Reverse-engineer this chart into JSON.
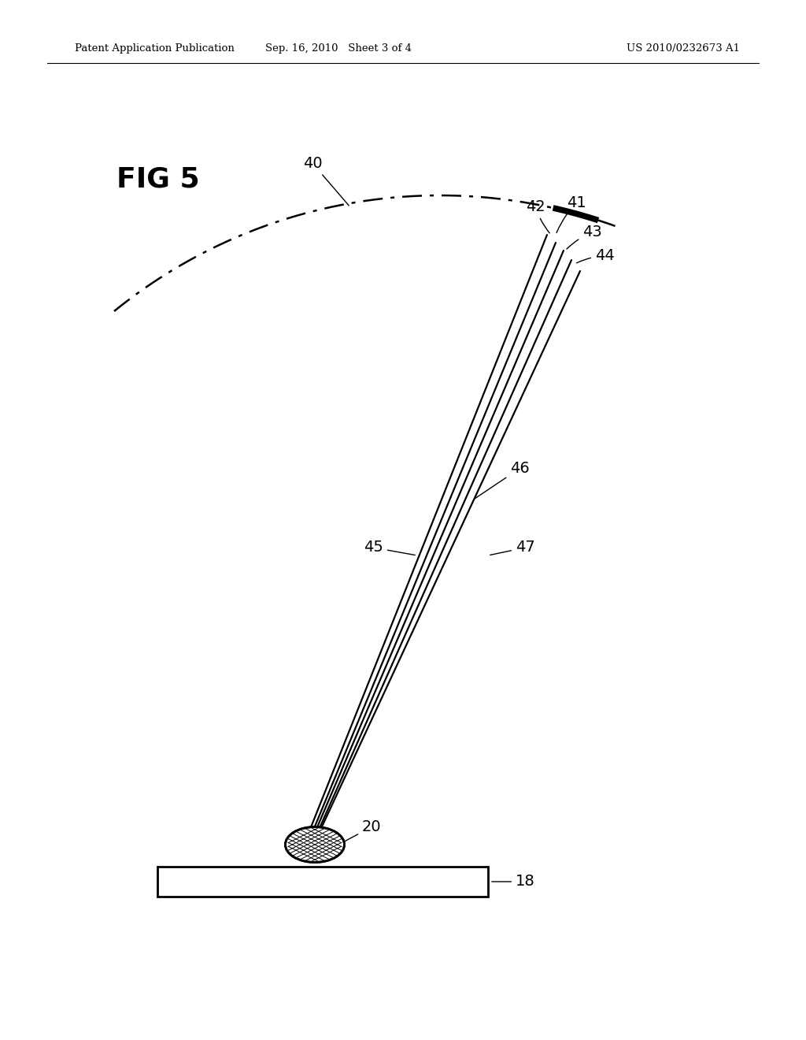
{
  "header_left": "Patent Application Publication",
  "header_mid": "Sep. 16, 2010   Sheet 3 of 4",
  "header_right": "US 2010/0232673 A1",
  "fig_label": "FIG 5",
  "bg_color": "#ffffff",
  "line_color": "#000000",
  "label_40": "40",
  "label_41": "41",
  "label_42": "42",
  "label_43": "43",
  "label_44": "44",
  "label_45": "45",
  "label_46": "46",
  "label_47": "47",
  "label_20": "20",
  "label_18": "18"
}
